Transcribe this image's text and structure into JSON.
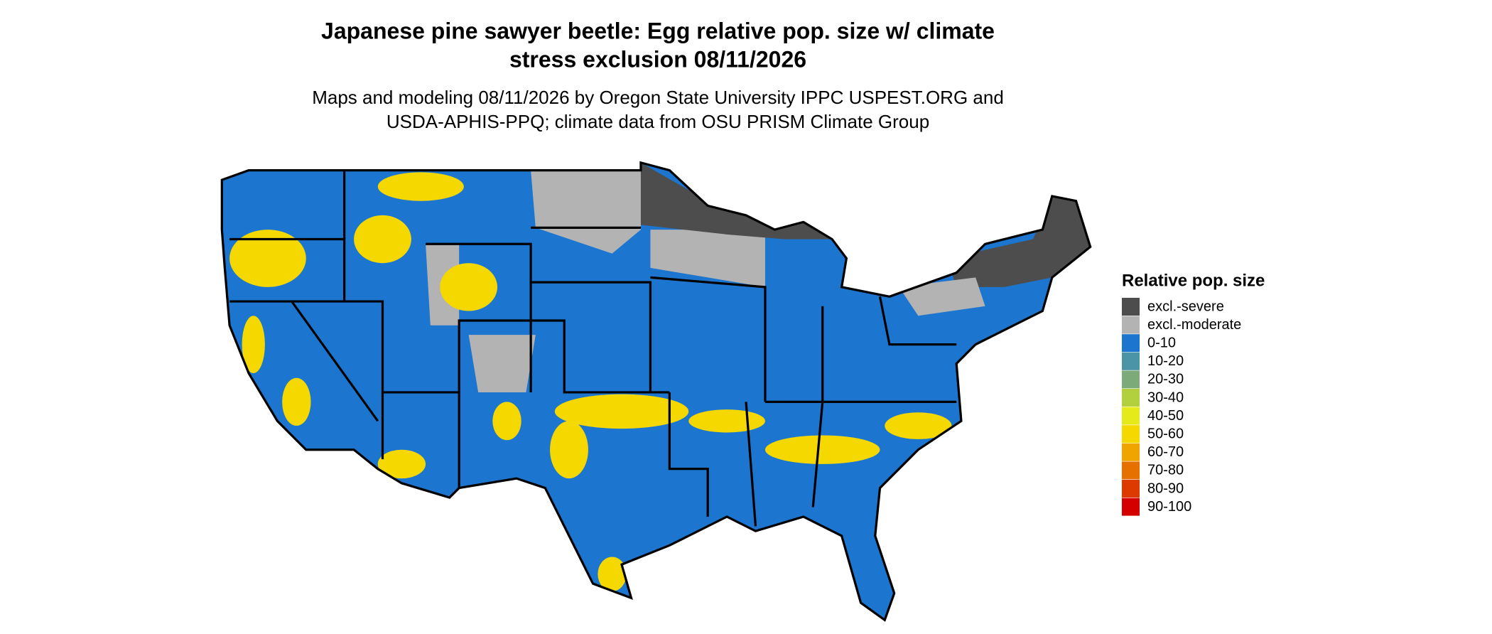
{
  "title": [
    "Japanese pine sawyer beetle: Egg relative pop. size w/ climate",
    "stress exclusion 08/11/2026"
  ],
  "subtitle": [
    "Maps and modeling 08/11/2026 by Oregon State University IPPC USPEST.ORG and",
    "USDA-APHIS-PPQ; climate data from OSU PRISM Climate Group"
  ],
  "legend": {
    "title": "Relative pop. size",
    "items": [
      {
        "label": "excl.-severe",
        "color": "#4d4d4d"
      },
      {
        "label": "excl.-moderate",
        "color": "#b3b3b3"
      },
      {
        "label": "0-10",
        "color": "#1c75cf"
      },
      {
        "label": "10-20",
        "color": "#4b93a7"
      },
      {
        "label": "20-30",
        "color": "#7caa78"
      },
      {
        "label": "30-40",
        "color": "#b2cf3e"
      },
      {
        "label": "40-50",
        "color": "#e5ea1b"
      },
      {
        "label": "50-60",
        "color": "#f5d800"
      },
      {
        "label": "60-70",
        "color": "#efa400"
      },
      {
        "label": "70-80",
        "color": "#e67000"
      },
      {
        "label": "80-90",
        "color": "#dd3a00"
      },
      {
        "label": "90-100",
        "color": "#d40000"
      }
    ]
  }
}
